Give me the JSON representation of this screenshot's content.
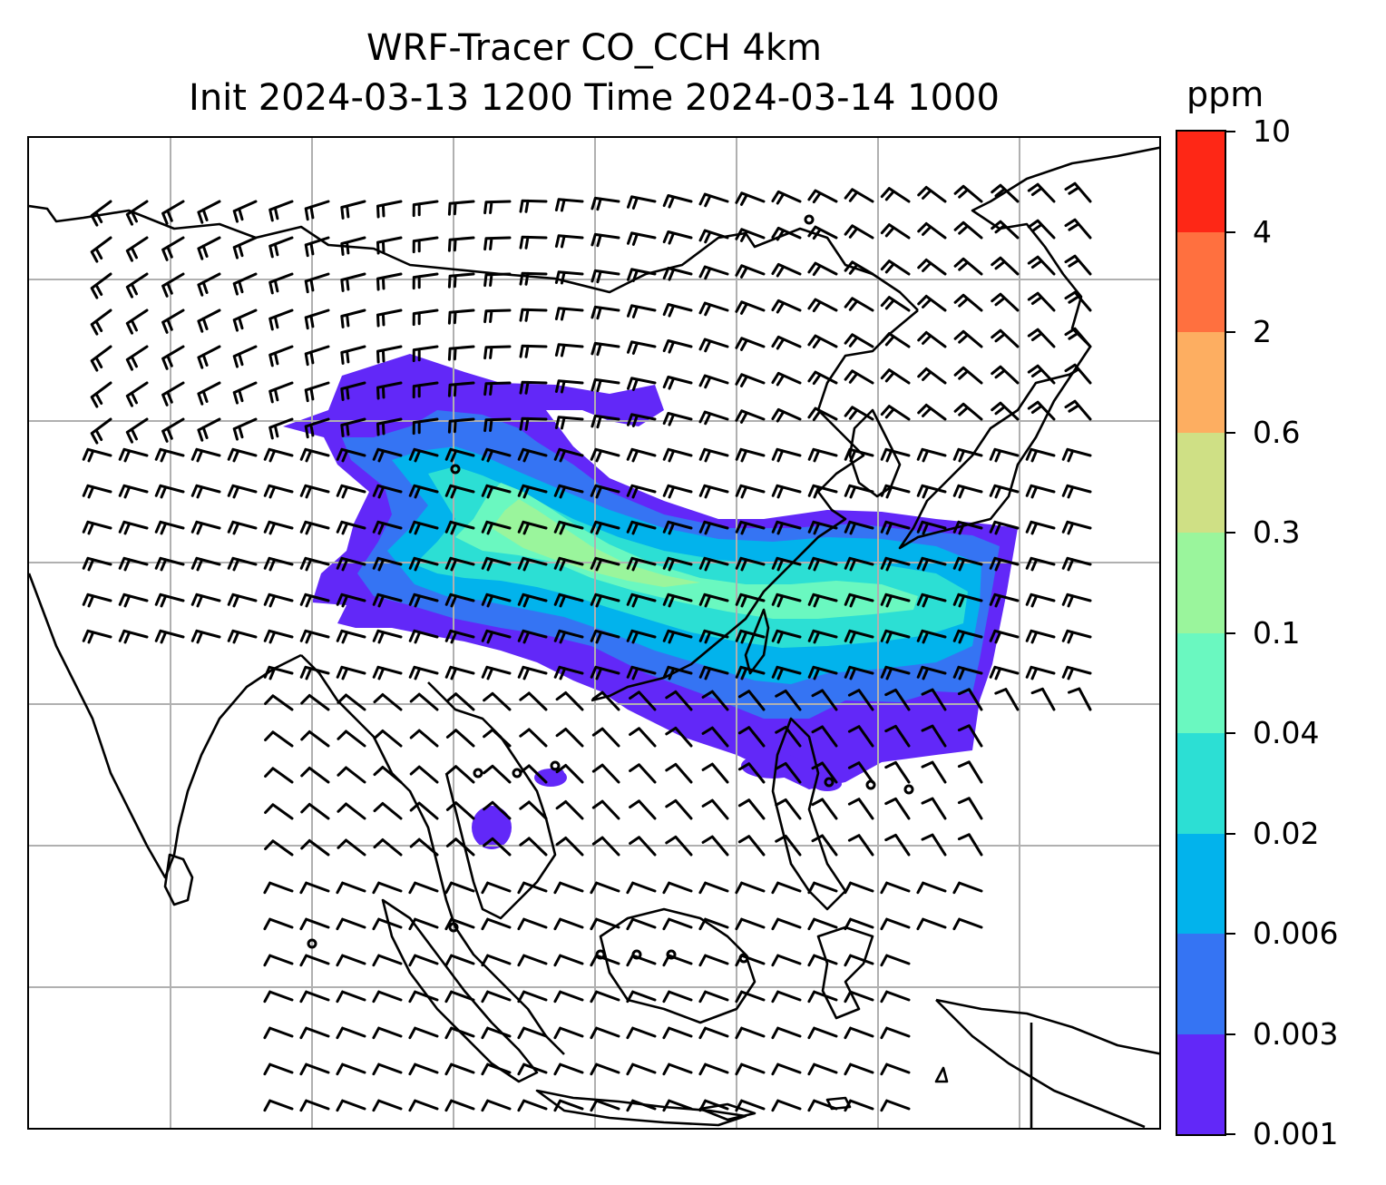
{
  "title": {
    "line1": "WRF-Tracer CO_CCH 4km",
    "line2": "Init 2024-03-13 1200 Time 2024-03-14 1000"
  },
  "colorbar": {
    "unit": "ppm",
    "levels": [
      "0.001",
      "0.003",
      "0.006",
      "0.02",
      "0.04",
      "0.1",
      "0.3",
      "0.6",
      "2",
      "4",
      "10"
    ],
    "colors": [
      "#6228f8",
      "#3574f3",
      "#02b3ec",
      "#2cdfd4",
      "#6af8c0",
      "#9af59c",
      "#cfe085",
      "#fdae61",
      "#ff703f",
      "#fe2716"
    ]
  },
  "map": {
    "gridline_color": "#b0b0b0",
    "coastline_color": "#000000",
    "layers": [
      "coastlines",
      "gridlines",
      "tracer-plume",
      "wind-barbs"
    ]
  }
}
